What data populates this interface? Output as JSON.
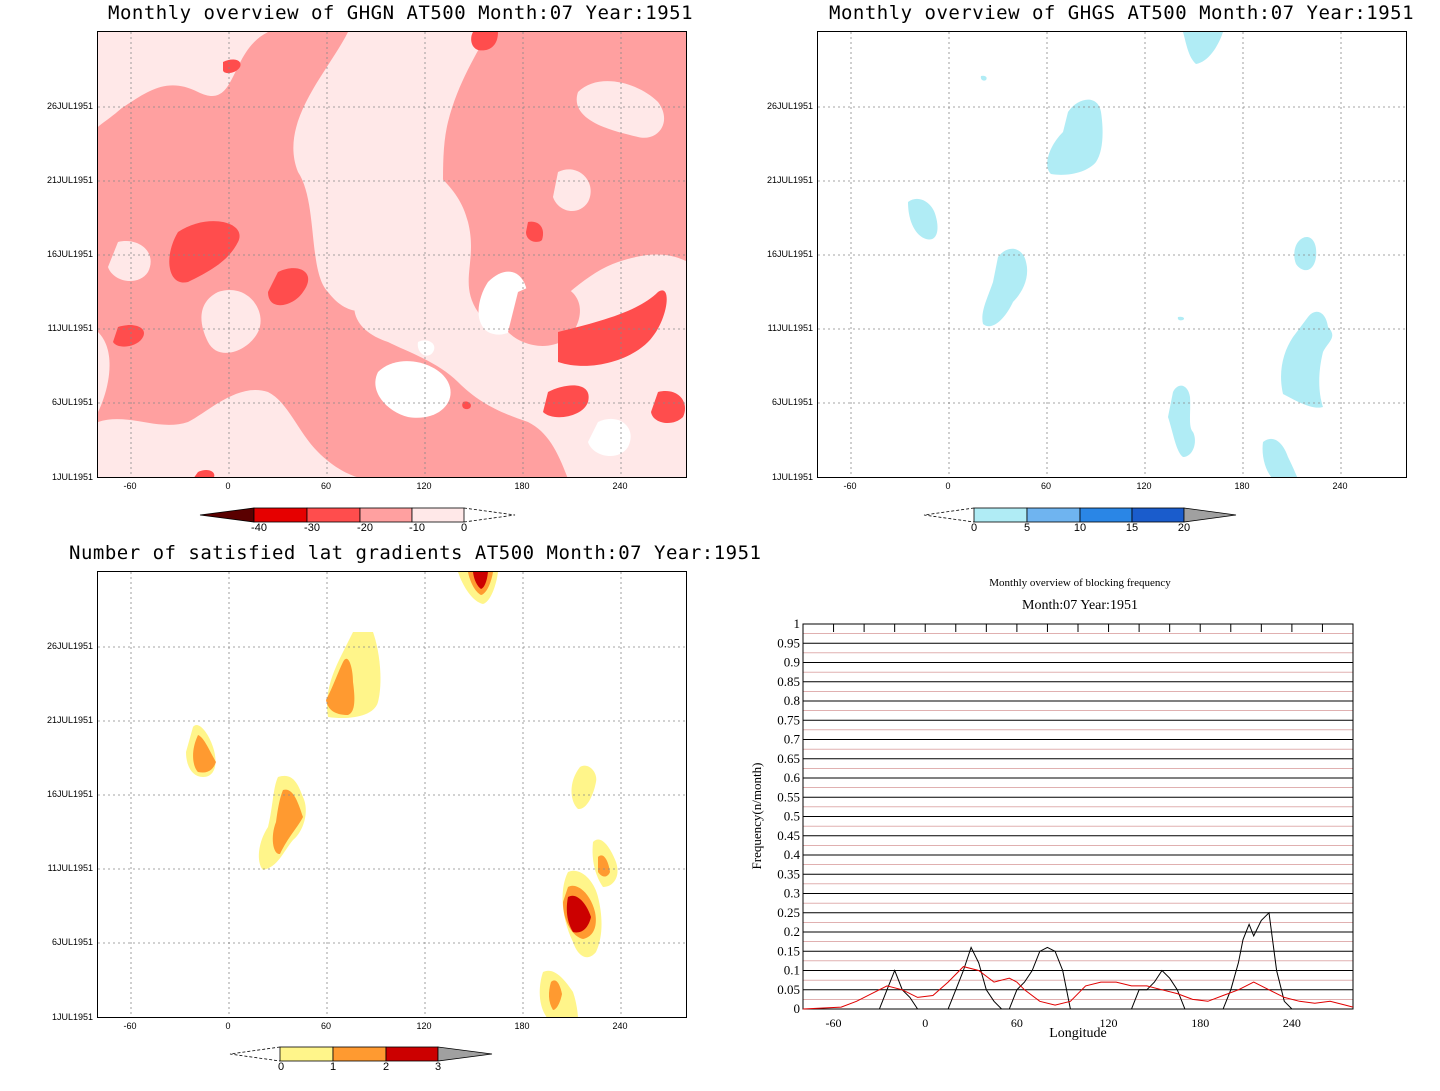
{
  "panels": {
    "ghgn": {
      "title": "Monthly overview of GHGN AT500 Month:07 Year:1951",
      "y_ticks": [
        "26JUL1951",
        "21JUL1951",
        "16JUL1951",
        "11JUL1951",
        "6JUL1951",
        "1JUL1951"
      ],
      "x_ticks": [
        "-60",
        "0",
        "60",
        "120",
        "180",
        "240"
      ],
      "colorbar": {
        "labels": [
          "-40",
          "-30",
          "-20",
          "-10",
          "0"
        ],
        "colors": [
          "#5a0000",
          "#e60000",
          "#ff4d4d",
          "#ffa0a0",
          "#ffe8e8"
        ]
      }
    },
    "ghgs": {
      "title": "Monthly overview of GHGS AT500 Month:07 Year:1951",
      "y_ticks": [
        "26JUL1951",
        "21JUL1951",
        "16JUL1951",
        "11JUL1951",
        "6JUL1951",
        "1JUL1951"
      ],
      "x_ticks": [
        "-60",
        "0",
        "60",
        "120",
        "180",
        "240"
      ],
      "colorbar": {
        "labels": [
          "0",
          "5",
          "10",
          "15",
          "20"
        ],
        "colors": [
          "#b0ecf5",
          "#6fb4f0",
          "#2a86e6",
          "#1a5ccc",
          "#a0a0a0"
        ]
      }
    },
    "gradients": {
      "title": "Number of satisfied lat gradients AT500 Month:07 Year:1951",
      "y_ticks": [
        "26JUL1951",
        "21JUL1951",
        "16JUL1951",
        "11JUL1951",
        "6JUL1951",
        "1JUL1951"
      ],
      "x_ticks": [
        "-60",
        "0",
        "60",
        "120",
        "180",
        "240"
      ],
      "colorbar": {
        "labels": [
          "0",
          "1",
          "2",
          "3"
        ],
        "colors": [
          "#fff58a",
          "#ff9a30",
          "#cc0000",
          "#a0a0a0"
        ]
      }
    },
    "frequency": {
      "title": "Monthly overview of blocking frequency",
      "subtitle": "Month:07 Year:1951",
      "ylabel": "Frequency(n/month)",
      "xlabel": "Longitude",
      "y_ticks": [
        "1",
        "0.95",
        "0.9",
        "0.85",
        "0.8",
        "0.75",
        "0.7",
        "0.65",
        "0.6",
        "0.55",
        "0.5",
        "0.45",
        "0.4",
        "0.35",
        "0.3",
        "0.25",
        "0.2",
        "0.15",
        "0.1",
        "0.05",
        "0"
      ],
      "x_ticks": [
        "-60",
        "0",
        "60",
        "120",
        "180",
        "240"
      ]
    }
  },
  "chart_data": [
    {
      "type": "heatmap",
      "title": "Monthly overview of GHGN AT500 Month:07 Year:1951",
      "x_axis": "longitude",
      "xlim": [
        -80,
        280
      ],
      "y_axis": "date",
      "ylim": [
        "1JUL1951",
        "31JUL1951"
      ],
      "levels": [
        -40,
        -30,
        -20,
        -10,
        0
      ],
      "grid": true
    },
    {
      "type": "heatmap",
      "title": "Monthly overview of GHGS AT500 Month:07 Year:1951",
      "x_axis": "longitude",
      "xlim": [
        -80,
        280
      ],
      "y_axis": "date",
      "ylim": [
        "1JUL1951",
        "31JUL1951"
      ],
      "levels": [
        0,
        5,
        10,
        15,
        20
      ],
      "grid": true
    },
    {
      "type": "heatmap",
      "title": "Number of satisfied lat gradients AT500 Month:07 Year:1951",
      "x_axis": "longitude",
      "xlim": [
        -80,
        280
      ],
      "y_axis": "date",
      "ylim": [
        "1JUL1951",
        "31JUL1951"
      ],
      "levels": [
        0,
        1,
        2,
        3
      ],
      "grid": true
    },
    {
      "type": "line",
      "title": "Monthly overview of blocking frequency",
      "subtitle": "Month:07 Year:1951",
      "xlabel": "Longitude",
      "ylabel": "Frequency(n/month)",
      "xlim": [
        -80,
        280
      ],
      "ylim": [
        0,
        1
      ],
      "series": [
        {
          "color": "#000000",
          "points": [
            [
              -80,
              0
            ],
            [
              -30,
              0
            ],
            [
              -25,
              0.05
            ],
            [
              -20,
              0.1
            ],
            [
              -15,
              0.05
            ],
            [
              -10,
              0.03
            ],
            [
              -5,
              0
            ],
            [
              15,
              0
            ],
            [
              20,
              0.05
            ],
            [
              25,
              0.1
            ],
            [
              30,
              0.16
            ],
            [
              35,
              0.12
            ],
            [
              40,
              0.05
            ],
            [
              45,
              0.02
            ],
            [
              50,
              0
            ],
            [
              55,
              0
            ],
            [
              60,
              0.05
            ],
            [
              65,
              0.07
            ],
            [
              70,
              0.1
            ],
            [
              75,
              0.15
            ],
            [
              80,
              0.16
            ],
            [
              85,
              0.15
            ],
            [
              90,
              0.1
            ],
            [
              95,
              0
            ],
            [
              135,
              0
            ],
            [
              140,
              0.05
            ],
            [
              145,
              0.05
            ],
            [
              150,
              0.07
            ],
            [
              155,
              0.1
            ],
            [
              160,
              0.08
            ],
            [
              165,
              0.05
            ],
            [
              170,
              0
            ],
            [
              195,
              0
            ],
            [
              200,
              0.05
            ],
            [
              205,
              0.12
            ],
            [
              208,
              0.18
            ],
            [
              212,
              0.22
            ],
            [
              215,
              0.19
            ],
            [
              220,
              0.23
            ],
            [
              225,
              0.25
            ],
            [
              230,
              0.1
            ],
            [
              235,
              0.02
            ],
            [
              240,
              0
            ],
            [
              280,
              0
            ]
          ]
        },
        {
          "color": "#e00000",
          "points": [
            [
              -80,
              0
            ],
            [
              -55,
              0.005
            ],
            [
              -45,
              0.02
            ],
            [
              -35,
              0.04
            ],
            [
              -25,
              0.06
            ],
            [
              -15,
              0.05
            ],
            [
              -5,
              0.03
            ],
            [
              5,
              0.035
            ],
            [
              15,
              0.07
            ],
            [
              25,
              0.11
            ],
            [
              35,
              0.1
            ],
            [
              45,
              0.07
            ],
            [
              55,
              0.08
            ],
            [
              60,
              0.07
            ],
            [
              65,
              0.05
            ],
            [
              75,
              0.02
            ],
            [
              85,
              0.01
            ],
            [
              95,
              0.02
            ],
            [
              105,
              0.06
            ],
            [
              115,
              0.07
            ],
            [
              125,
              0.07
            ],
            [
              135,
              0.06
            ],
            [
              145,
              0.06
            ],
            [
              155,
              0.05
            ],
            [
              165,
              0.04
            ],
            [
              175,
              0.025
            ],
            [
              185,
              0.02
            ],
            [
              195,
              0.035
            ],
            [
              205,
              0.05
            ],
            [
              215,
              0.07
            ],
            [
              225,
              0.05
            ],
            [
              235,
              0.03
            ],
            [
              245,
              0.02
            ],
            [
              255,
              0.015
            ],
            [
              265,
              0.02
            ],
            [
              275,
              0.01
            ],
            [
              280,
              0.005
            ]
          ]
        }
      ]
    }
  ]
}
